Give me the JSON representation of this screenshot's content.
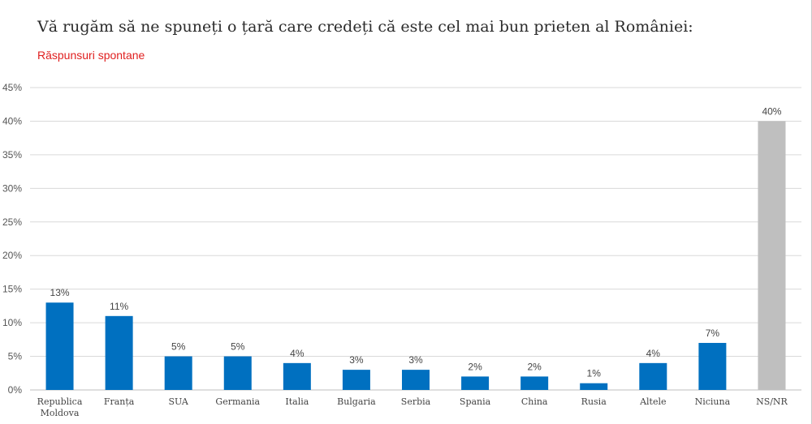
{
  "title": "Vă rugăm să ne spuneți o țară care credeți că este cel mai bun prieten al României:",
  "subtitle": "Răspunsuri spontane",
  "colors": {
    "primary": "#0070c0",
    "highlight": "#bfbfbf",
    "grid": "#d9d9d9",
    "subtitle": "#e02020"
  },
  "chart_data": {
    "type": "bar",
    "title": "Vă rugăm să ne spuneți o țară care credeți că este cel mai bun prieten al României:",
    "subtitle": "Răspunsuri spontane",
    "categories": [
      [
        "Republica",
        "Moldova"
      ],
      [
        "Franța"
      ],
      [
        "SUA"
      ],
      [
        "Germania"
      ],
      [
        "Italia"
      ],
      [
        "Bulgaria"
      ],
      [
        "Serbia"
      ],
      [
        "Spania"
      ],
      [
        "China"
      ],
      [
        "Rusia"
      ],
      [
        "Altele"
      ],
      [
        "Niciuna"
      ],
      [
        "NS/NR"
      ]
    ],
    "values": [
      13,
      11,
      5,
      5,
      4,
      3,
      3,
      2,
      2,
      1,
      4,
      7,
      40
    ],
    "value_labels": [
      "13%",
      "11%",
      "5%",
      "5%",
      "4%",
      "3%",
      "3%",
      "2%",
      "2%",
      "1%",
      "4%",
      "7%",
      "40%"
    ],
    "bar_colors": [
      "#0070c0",
      "#0070c0",
      "#0070c0",
      "#0070c0",
      "#0070c0",
      "#0070c0",
      "#0070c0",
      "#0070c0",
      "#0070c0",
      "#0070c0",
      "#0070c0",
      "#0070c0",
      "#bfbfbf"
    ],
    "yticks": [
      "0%",
      "5%",
      "10%",
      "15%",
      "20%",
      "25%",
      "30%",
      "35%",
      "40%",
      "45%"
    ],
    "ylim": [
      0,
      45
    ],
    "grid": true,
    "legend": "none"
  }
}
